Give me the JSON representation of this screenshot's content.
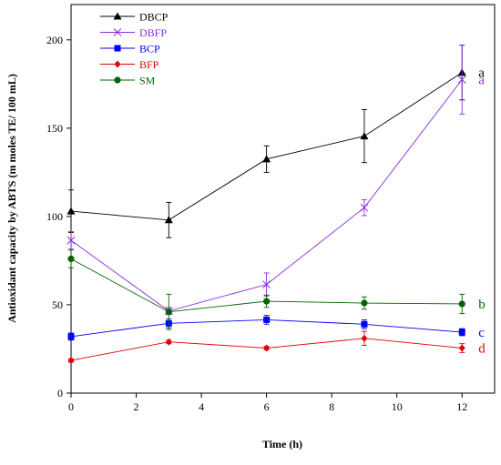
{
  "chart_data": {
    "type": "line",
    "xlabel": "Time (h)",
    "ylabel": "Antioxidant capacity by ABTS (m moles TE/ 100 mL)",
    "xlim": [
      0,
      13
    ],
    "ylim": [
      0,
      220
    ],
    "xticks": [
      "0",
      "2",
      "4",
      "6",
      "8",
      "10",
      "12"
    ],
    "yticks": [
      "0",
      "50",
      "100",
      "150",
      "200"
    ],
    "grid": false,
    "legend_position": "top-left",
    "x": [
      0,
      3,
      6,
      9,
      12
    ],
    "series": [
      {
        "name": "DBCP",
        "color": "#000000",
        "marker": "triangle",
        "values": [
          103,
          98,
          132.5,
          145.5,
          181.5
        ],
        "errors": [
          12,
          10,
          7.5,
          15,
          15.5
        ],
        "sig_label": "a"
      },
      {
        "name": "DBFP",
        "color": "#8a2be2",
        "marker": "x",
        "values": [
          86.5,
          46.5,
          61.5,
          105,
          177.5
        ],
        "errors": [
          5,
          2,
          6.5,
          4.5,
          19.5
        ],
        "sig_label": "a"
      },
      {
        "name": "BCP",
        "color": "#0000ff",
        "marker": "square",
        "values": [
          32,
          39.5,
          41.5,
          39,
          34.5
        ],
        "errors": [
          2,
          2.5,
          2.5,
          2.5,
          2
        ],
        "sig_label": "c"
      },
      {
        "name": "BFP",
        "color": "#e00000",
        "marker": "diamond",
        "values": [
          18.5,
          29,
          25.5,
          31,
          25.5
        ],
        "errors": [
          1,
          1,
          1,
          4,
          2.5
        ],
        "sig_label": "d"
      },
      {
        "name": "SM",
        "color": "#006400",
        "marker": "circle",
        "values": [
          76,
          46,
          52,
          51,
          50.5
        ],
        "errors": [
          5,
          10,
          3.5,
          3.5,
          5.5
        ],
        "sig_label": "b"
      }
    ]
  }
}
